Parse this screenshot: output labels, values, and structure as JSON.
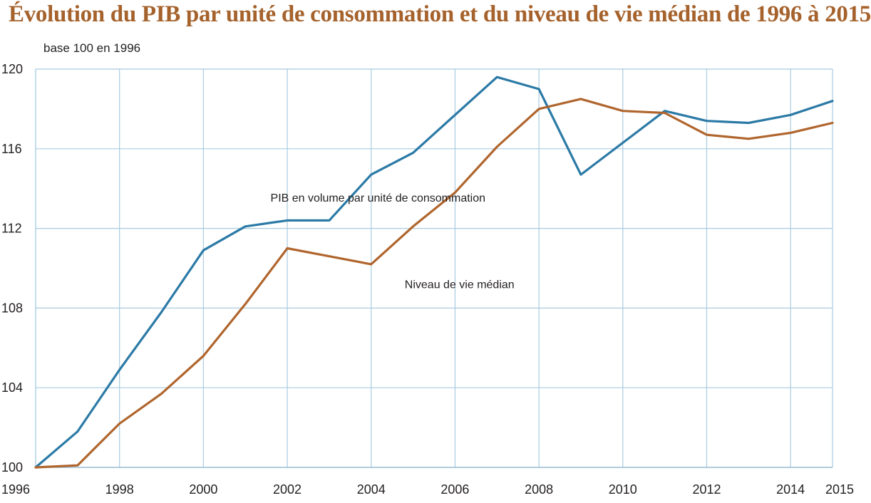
{
  "chart_data": {
    "type": "line",
    "title": "Évolution du PIB par unité de consommation et du niveau de vie médian de 1996 à 2015",
    "subtitle": "base 100 en 1996",
    "xlabel": "",
    "ylabel": "",
    "xlim": [
      1996,
      2015
    ],
    "ylim": [
      100,
      120
    ],
    "y_ticks": [
      100,
      104,
      108,
      112,
      116,
      120
    ],
    "x_tick_labels": [
      "1996",
      "1998",
      "2000",
      "2002",
      "2004",
      "2006",
      "2008",
      "2010",
      "2012",
      "2014",
      "2015"
    ],
    "x_tick_values": [
      1996,
      1998,
      2000,
      2002,
      2004,
      2006,
      2008,
      2010,
      2012,
      2014,
      2015
    ],
    "grid": true,
    "x": [
      1996,
      1997,
      1998,
      1999,
      2000,
      2001,
      2002,
      2003,
      2004,
      2005,
      2006,
      2007,
      2008,
      2009,
      2010,
      2011,
      2012,
      2013,
      2014,
      2015
    ],
    "series": [
      {
        "name": "PIB en volume par unité de consommation",
        "color": "#2b7aa6",
        "values": [
          100.0,
          101.8,
          104.9,
          107.8,
          110.9,
          112.1,
          112.4,
          112.4,
          114.7,
          115.8,
          117.7,
          119.6,
          119.0,
          114.7,
          116.3,
          117.9,
          117.4,
          117.3,
          117.7,
          118.4
        ]
      },
      {
        "name": "Niveau de vie médian",
        "color": "#b0652d",
        "values": [
          100.0,
          100.1,
          102.2,
          103.7,
          105.6,
          108.2,
          111.0,
          110.6,
          110.2,
          112.1,
          113.8,
          116.1,
          118.0,
          118.5,
          117.9,
          117.8,
          116.7,
          116.5,
          116.8,
          117.3
        ]
      }
    ],
    "annotations": [
      {
        "text": "PIB en volume par unité de consommation",
        "series": 0,
        "x": 2001.6,
        "y": 113.35
      },
      {
        "text": "Niveau de vie médian",
        "series": 1,
        "x": 2004.8,
        "y": 109.0
      }
    ]
  }
}
